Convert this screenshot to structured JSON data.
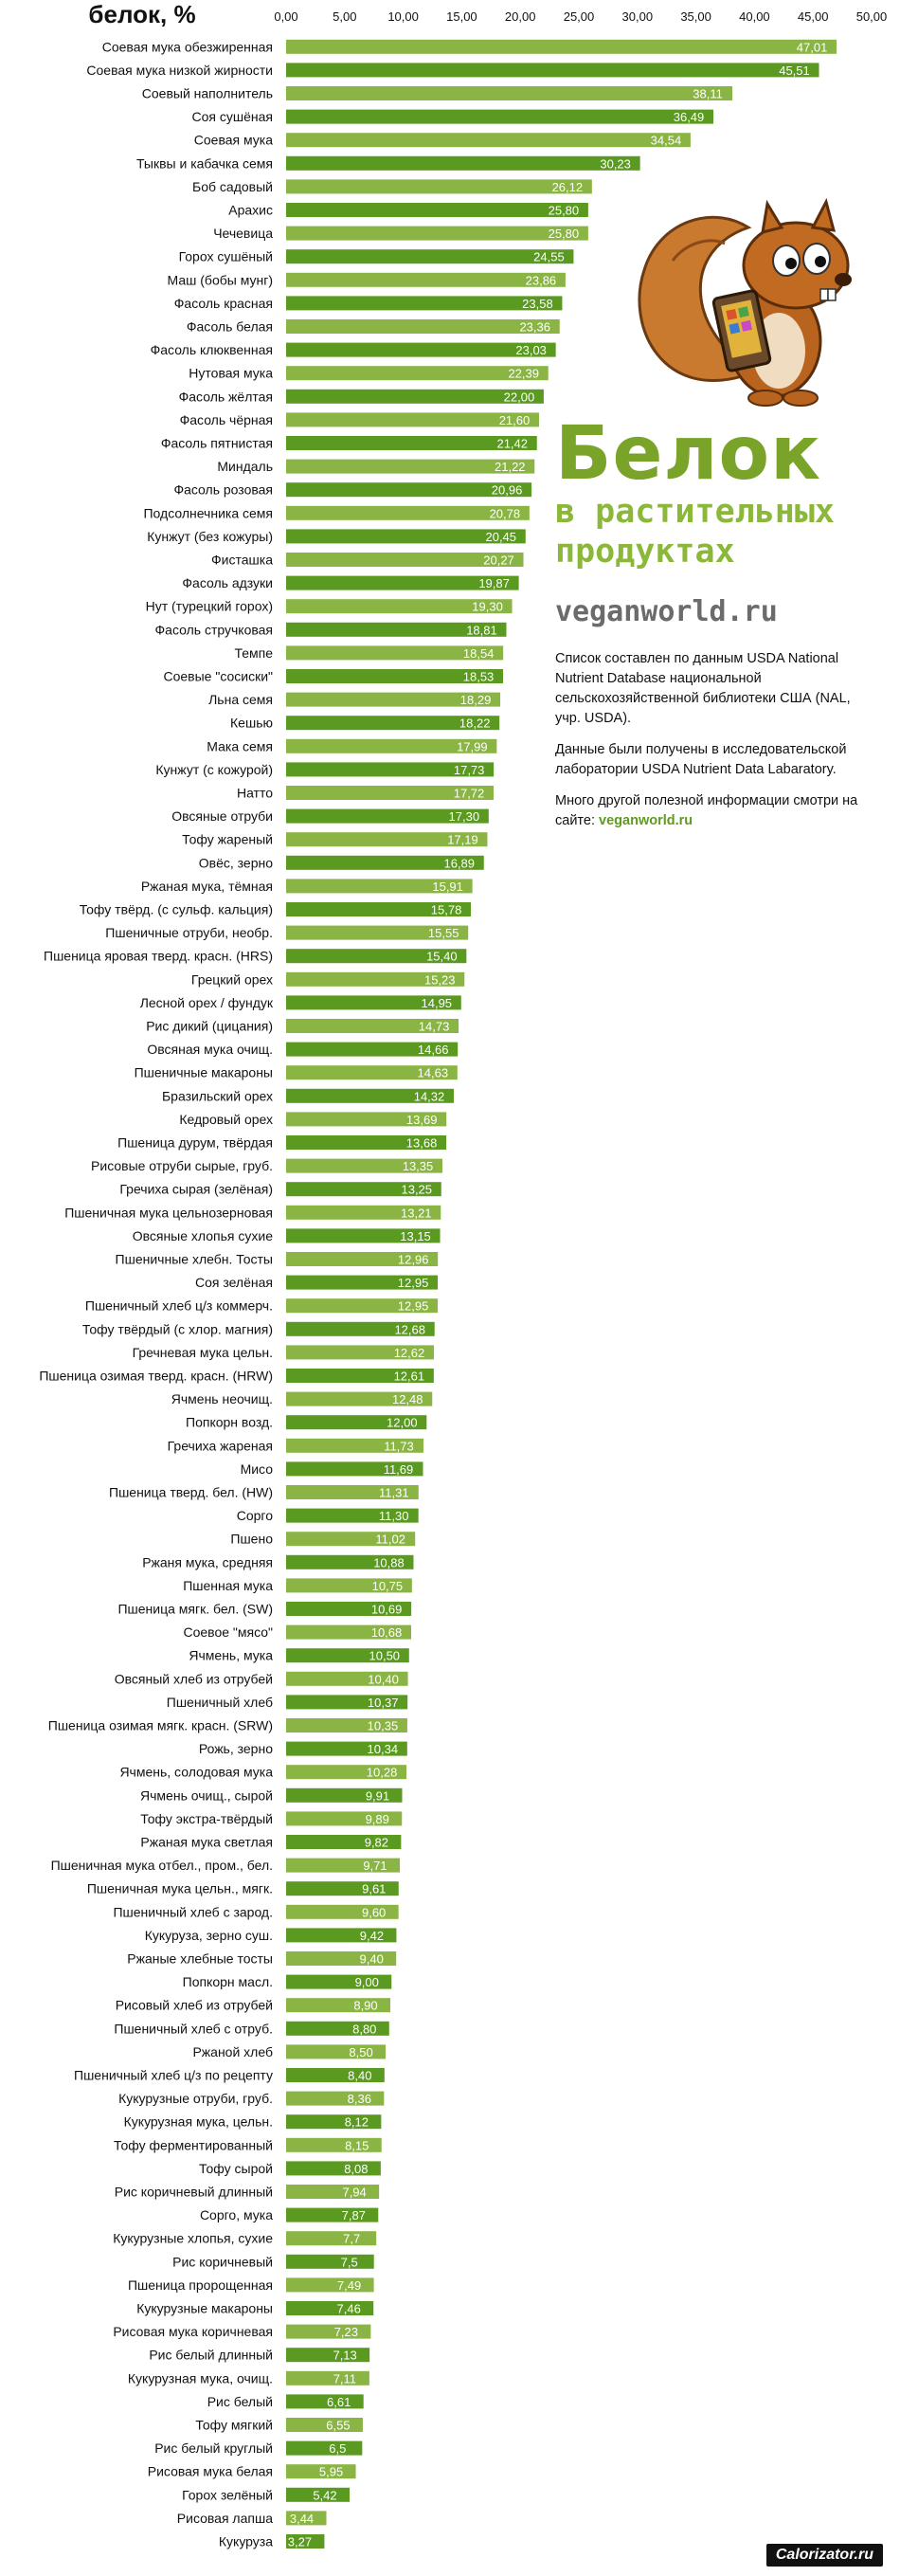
{
  "chart_data": {
    "type": "bar",
    "orientation": "horizontal",
    "title": "белок, %",
    "xlim": [
      0,
      50
    ],
    "x_ticks": [
      "0,00",
      "5,00",
      "10,00",
      "15,00",
      "20,00",
      "25,00",
      "30,00",
      "35,00",
      "40,00",
      "45,00",
      "50,00"
    ],
    "grid": false,
    "colors": {
      "light": "#8ab545",
      "dark": "#5a9a20",
      "label": "#ffffff"
    },
    "categories": [
      "Соевая мука обезжиренная",
      "Соевая мука низкой жирности",
      "Соевый наполнитель",
      "Соя сушёная",
      "Соевая мука",
      "Тыквы и кабачка семя",
      "Боб садовый",
      "Арахис",
      "Чечевица",
      "Горох сушёный",
      "Маш (бобы мунг)",
      "Фасоль красная",
      "Фасоль белая",
      "Фасоль клюквенная",
      "Нутовая мука",
      "Фасоль жёлтая",
      "Фасоль чёрная",
      "Фасоль пятнистая",
      "Миндаль",
      "Фасоль розовая",
      "Подсолнечника семя",
      "Кунжут (без кожуры)",
      "Фисташка",
      "Фасоль адзуки",
      "Нут (турецкий горох)",
      "Фасоль стручковая",
      "Темпе",
      "Соевые \"сосиски\"",
      "Льна семя",
      "Кешью",
      "Мака семя",
      "Кунжут (с кожурой)",
      "Натто",
      "Овсяные отруби",
      "Тофу жареный",
      "Овёс, зерно",
      "Ржаная мука, тёмная",
      "Тофу твёрд. (с сульф. кальция)",
      "Пшеничные отруби, необр.",
      "Пшеница яровая тверд. красн. (HRS)",
      "Грецкий орех",
      "Лесной орех / фундук",
      "Рис дикий (цицания)",
      "Овсяная мука очищ.",
      "Пшеничные макароны",
      "Бразильский орех",
      "Кедровый орех",
      "Пшеница дурум, твёрдая",
      "Рисовые отруби сырые, груб.",
      "Гречиха сырая (зелёная)",
      "Пшеничная мука цельнозерновая",
      "Овсяные хлопья сухие",
      "Пшеничные хлебн. Тосты",
      "Соя зелёная",
      "Пшеничный хлеб ц/з коммерч.",
      "Тофу твёрдый (с хлор. магния)",
      "Гречневая мука цельн.",
      "Пшеница озимая тверд. красн. (HRW)",
      "Ячмень неочищ.",
      "Попкорн возд.",
      "Гречиха жареная",
      "Мисо",
      "Пшеница тверд. бел. (HW)",
      "Сорго",
      "Пшено",
      "Ржаня мука, средняя",
      "Пшенная мука",
      "Пшеница мягк. бел. (SW)",
      "Соевое \"мясо\"",
      "Ячмень, мука",
      "Овсяный хлеб из отрубей",
      "Пшеничный хлеб",
      "Пшеница озимая мягк. красн. (SRW)",
      "Рожь, зерно",
      "Ячмень, солодовая мука",
      "Ячмень очищ., сырой",
      "Тофу экстра-твёрдый",
      "Ржаная мука светлая",
      "Пшеничная мука отбел., пром., бел.",
      "Пшеничная мука цельн., мягк.",
      "Пшеничный хлеб с зарод.",
      "Кукуруза, зерно суш.",
      "Ржаные хлебные тосты",
      "Попкорн масл.",
      "Рисовый хлеб из отрубей",
      "Пшеничный хлеб с отруб.",
      "Ржаной хлеб",
      "Пшеничный хлеб ц/з по рецепту",
      "Кукурузные отруби, груб.",
      "Кукурузная мука, цельн.",
      "Тофу ферментированный",
      "Тофу сырой",
      "Рис коричневый длинный",
      "Сорго, мука",
      "Кукурузные хлопья, сухие",
      "Рис коричневый",
      "Пшеница пророщенная",
      "Кукурузные макароны",
      "Рисовая мука коричневая",
      "Рис белый длинный",
      "Кукурузная мука, очищ.",
      "Рис белый",
      "Тофу мягкий",
      "Рис белый круглый",
      "Рисовая мука белая",
      "Горох зелёный",
      "Рисовая лапша",
      "Кукуруза"
    ],
    "values": [
      47.01,
      45.51,
      38.11,
      36.49,
      34.54,
      30.23,
      26.12,
      25.8,
      25.8,
      24.55,
      23.86,
      23.58,
      23.36,
      23.03,
      22.39,
      22.0,
      21.6,
      21.42,
      21.22,
      20.96,
      20.78,
      20.45,
      20.27,
      19.87,
      19.3,
      18.81,
      18.54,
      18.53,
      18.29,
      18.22,
      17.99,
      17.73,
      17.72,
      17.3,
      17.19,
      16.89,
      15.91,
      15.78,
      15.55,
      15.4,
      15.23,
      14.95,
      14.73,
      14.66,
      14.63,
      14.32,
      13.69,
      13.68,
      13.35,
      13.25,
      13.21,
      13.15,
      12.96,
      12.95,
      12.95,
      12.68,
      12.62,
      12.61,
      12.48,
      12.0,
      11.73,
      11.69,
      11.31,
      11.3,
      11.02,
      10.88,
      10.75,
      10.69,
      10.68,
      10.5,
      10.4,
      10.37,
      10.35,
      10.34,
      10.28,
      9.91,
      9.89,
      9.82,
      9.71,
      9.61,
      9.6,
      9.42,
      9.4,
      9.0,
      8.9,
      8.8,
      8.5,
      8.4,
      8.36,
      8.12,
      8.15,
      8.08,
      7.94,
      7.87,
      7.7,
      7.5,
      7.49,
      7.46,
      7.23,
      7.13,
      7.11,
      6.61,
      6.55,
      6.5,
      5.95,
      5.42,
      3.44,
      3.27
    ],
    "labels": [
      "47,01",
      "45,51",
      "38,11",
      "36,49",
      "34,54",
      "30,23",
      "26,12",
      "25,80",
      "25,80",
      "24,55",
      "23,86",
      "23,58",
      "23,36",
      "23,03",
      "22,39",
      "22,00",
      "21,60",
      "21,42",
      "21,22",
      "20,96",
      "20,78",
      "20,45",
      "20,27",
      "19,87",
      "19,30",
      "18,81",
      "18,54",
      "18,53",
      "18,29",
      "18,22",
      "17,99",
      "17,73",
      "17,72",
      "17,30",
      "17,19",
      "16,89",
      "15,91",
      "15,78",
      "15,55",
      "15,40",
      "15,23",
      "14,95",
      "14,73",
      "14,66",
      "14,63",
      "14,32",
      "13,69",
      "13,68",
      "13,35",
      "13,25",
      "13,21",
      "13,15",
      "12,96",
      "12,95",
      "12,95",
      "12,68",
      "12,62",
      "12,61",
      "12,48",
      "12,00",
      "11,73",
      "11,69",
      "11,31",
      "11,30",
      "11,02",
      "10,88",
      "10,75",
      "10,69",
      "10,68",
      "10,50",
      "10,40",
      "10,37",
      "10,35",
      "10,34",
      "10,28",
      "9,91",
      "9,89",
      "9,82",
      "9,71",
      "9,61",
      "9,60",
      "9,42",
      "9,40",
      "9,00",
      "8,90",
      "8,80",
      "8,50",
      "8,40",
      "8,36",
      "8,12",
      "8,15",
      "8,08",
      "7,94",
      "7,87",
      "7,7",
      "7,5",
      "7,49",
      "7,46",
      "7,23",
      "7,13",
      "7,11",
      "6,61",
      "6,55",
      "6,5",
      "5,95",
      "5,42",
      "3,44",
      "3,27"
    ]
  },
  "info": {
    "title_big": "Белок",
    "title_line2": "в растительных",
    "title_line3": "продуктах",
    "site": "veganworld.ru",
    "note1": "Список составлен по данным USDA National Nutrient Database национальной сельскохозяйственной библиотеки США (NAL, учр. USDA).",
    "note2": "Данные были получены в исследовательской лаборатории USDA Nutrient Data Labaratory.",
    "note3": "Много другой полезной информации смотри на сайте:",
    "note3_link": "veganworld.ru"
  },
  "footer": {
    "brand": "Calorizator.ru"
  }
}
